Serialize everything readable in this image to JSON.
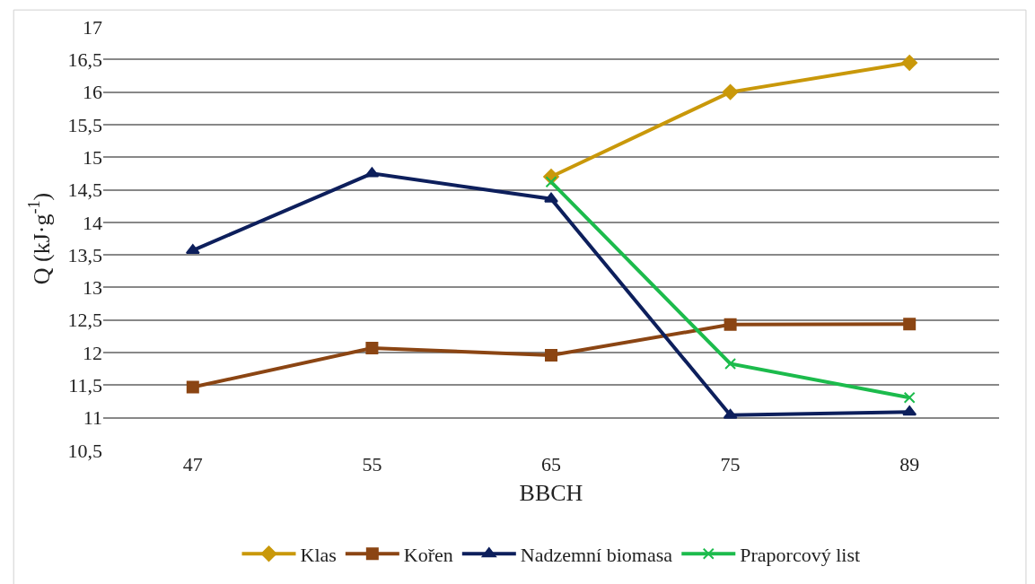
{
  "chart_data": {
    "type": "line",
    "xlabel": "BBCH",
    "ylabel": "Q (kJ·g$^{-1}$)",
    "categories": [
      "47",
      "55",
      "65",
      "75",
      "89"
    ],
    "series": [
      {
        "name": "Klas",
        "color": "#c9980a",
        "marker": "diamond",
        "values": [
          null,
          null,
          14.7,
          16.0,
          16.45
        ]
      },
      {
        "name": "Kořen",
        "color": "#8b4513",
        "marker": "square",
        "values": [
          11.47,
          12.07,
          11.96,
          12.43,
          12.44
        ]
      },
      {
        "name": "Nadzemní biomasa",
        "color": "#0d1f5c",
        "marker": "triangle",
        "values": [
          13.57,
          14.75,
          14.36,
          11.04,
          11.09
        ]
      },
      {
        "name": "Praporcový list",
        "color": "#1cbb4c",
        "marker": "cross",
        "values": [
          null,
          null,
          14.62,
          11.83,
          11.31
        ]
      }
    ],
    "ylim": [
      10.5,
      17
    ],
    "yticks": [
      {
        "value": 10.5,
        "label": "10,5"
      },
      {
        "value": 11,
        "label": "11"
      },
      {
        "value": 11.5,
        "label": "11,5"
      },
      {
        "value": 12,
        "label": "12"
      },
      {
        "value": 12.5,
        "label": "12,5"
      },
      {
        "value": 13,
        "label": "13"
      },
      {
        "value": 13.5,
        "label": "13,5"
      },
      {
        "value": 14,
        "label": "14"
      },
      {
        "value": 14.5,
        "label": "14,5"
      },
      {
        "value": 15,
        "label": "15"
      },
      {
        "value": 15.5,
        "label": "15,5"
      },
      {
        "value": 16,
        "label": "16"
      },
      {
        "value": 16.5,
        "label": "16,5"
      },
      {
        "value": 17,
        "label": "17"
      }
    ],
    "grid": "y",
    "legend": "bottom",
    "line_style": "solid"
  }
}
